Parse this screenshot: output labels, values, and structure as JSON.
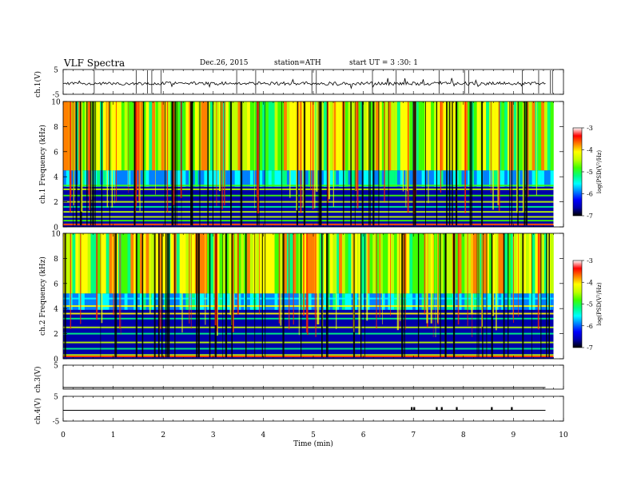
{
  "header": {
    "title": "VLF  Spectra",
    "date": "Dec.26, 2015",
    "station": "station=ATH",
    "start": "start  UT  =   3  :30: 1"
  },
  "colorbars": {
    "label": "log(PSD(V²/Hz)",
    "ticks": [
      "-3",
      "-4",
      "-5",
      "-6",
      "-7"
    ],
    "range": [
      -7,
      -3
    ],
    "colors": [
      "#000000",
      "#0000aa",
      "#0000ff",
      "#0080ff",
      "#00ffff",
      "#00ff80",
      "#40ff00",
      "#c0ff00",
      "#ffff00",
      "#ff8000",
      "#ff0000",
      "#ffffff"
    ]
  },
  "chart_data": [
    {
      "type": "line",
      "ylabel": "ch.1(V)",
      "ylim": [
        -5,
        5
      ],
      "yticks": [
        "5",
        "-5"
      ],
      "note": "noisy broadband waveform around 0 V with spikes"
    },
    {
      "type": "heatmap",
      "ylabel": "ch.1  Frequency (kHz)",
      "ylim": [
        0,
        10
      ],
      "yticks": [
        "10",
        "8",
        "6",
        "4",
        "2",
        "0"
      ],
      "zlabel": "log(PSD(V²/Hz)",
      "zlim": [
        -7,
        -3
      ],
      "bands_khz": [
        0.2,
        0.5,
        0.8,
        1.2,
        1.6,
        2.0,
        2.5,
        3.0,
        3.3
      ],
      "x_units": "min",
      "xlim": [
        0,
        9.8
      ]
    },
    {
      "type": "heatmap",
      "ylabel": "ch.2  Frequency (kHz)",
      "ylim": [
        0,
        10
      ],
      "yticks": [
        "10",
        "8",
        "6",
        "4",
        "2",
        "0"
      ],
      "zlabel": "log(PSD(V²/Hz)",
      "zlim": [
        -7,
        -3
      ],
      "bands_khz": [
        0.3,
        0.8,
        1.3,
        2.0,
        2.5,
        3.2,
        3.6,
        4.2,
        4.8
      ],
      "x_units": "min",
      "xlim": [
        0,
        9.8
      ]
    },
    {
      "type": "line",
      "ylabel": "ch.3(V)",
      "ylim": [
        -5,
        5
      ],
      "yticks": [
        "5"
      ],
      "values_constant": 0
    },
    {
      "type": "line",
      "ylabel": "ch.4(V)",
      "ylim": [
        -5,
        5
      ],
      "yticks": [
        "5",
        "-5"
      ],
      "values_constant": 0,
      "pulses_min": [
        6.95,
        7.0,
        7.45,
        7.55,
        7.85,
        8.55,
        8.95
      ]
    }
  ],
  "xaxis": {
    "label": "Time  (min)",
    "ticks": [
      "0",
      "1",
      "2",
      "3",
      "4",
      "5",
      "6",
      "7",
      "8",
      "9",
      "10"
    ],
    "range": [
      0,
      10
    ]
  }
}
